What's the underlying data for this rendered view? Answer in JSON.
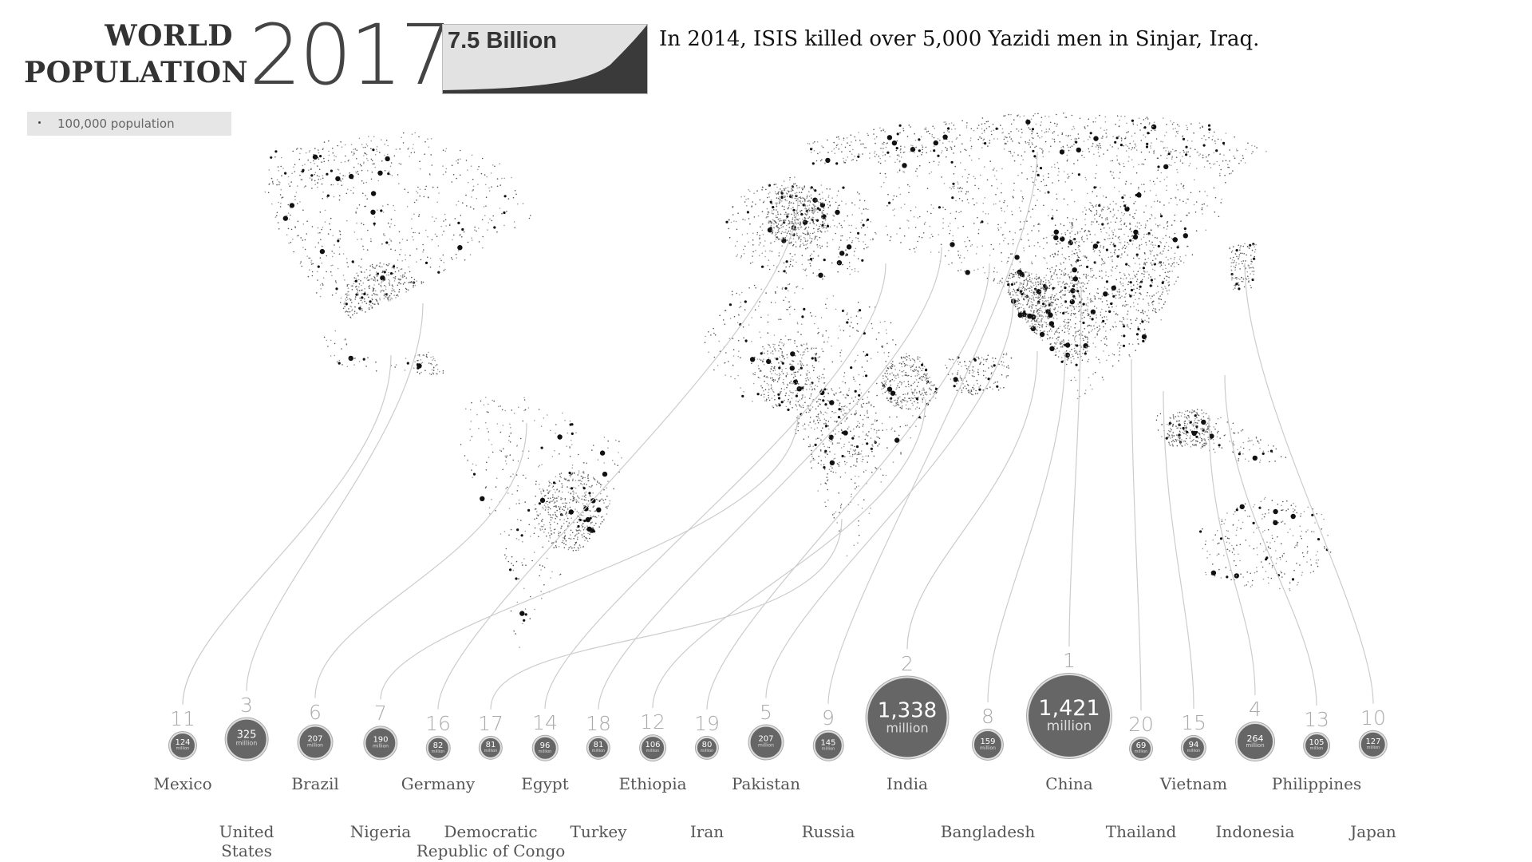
{
  "header": {
    "title_line1": "WORLD",
    "title_line2": "POPULATION",
    "year": "2017",
    "world_population": "7.5 Billion",
    "fact": "In 2014, ISIS killed over 5,000 Yazidi men in Sinjar, Iraq."
  },
  "legend": {
    "label": "100,000 population"
  },
  "colors": {
    "bubble": "#666666",
    "dot": "#222222",
    "rank": "#aaaaaa",
    "leader": "#cccccc",
    "background": "#ffffff"
  },
  "chart_data": {
    "type": "scatter",
    "title": "WORLD POPULATION 2017",
    "unit": "million",
    "dot_value": "100,000 population",
    "countries": [
      {
        "rank": "1",
        "name": "China",
        "value": "1,421",
        "millions": 1421,
        "unit": "million"
      },
      {
        "rank": "2",
        "name": "India",
        "value": "1,338",
        "millions": 1338,
        "unit": "million"
      },
      {
        "rank": "3",
        "name": "United States",
        "value": "325",
        "millions": 325,
        "unit": "million"
      },
      {
        "rank": "4",
        "name": "Indonesia",
        "value": "264",
        "millions": 264,
        "unit": "million"
      },
      {
        "rank": "5",
        "name": "Pakistan",
        "value": "207",
        "millions": 207,
        "unit": "million"
      },
      {
        "rank": "6",
        "name": "Brazil",
        "value": "207",
        "millions": 207,
        "unit": "million"
      },
      {
        "rank": "7",
        "name": "Nigeria",
        "value": "190",
        "millions": 190,
        "unit": "million"
      },
      {
        "rank": "8",
        "name": "Bangladesh",
        "value": "159",
        "millions": 159,
        "unit": "million"
      },
      {
        "rank": "9",
        "name": "Russia",
        "value": "145",
        "millions": 145,
        "unit": "million"
      },
      {
        "rank": "10",
        "name": "Japan",
        "value": "127",
        "millions": 127,
        "unit": "million"
      },
      {
        "rank": "11",
        "name": "Mexico",
        "value": "124",
        "millions": 124,
        "unit": "million"
      },
      {
        "rank": "12",
        "name": "Ethiopia",
        "value": "106",
        "millions": 106,
        "unit": "million"
      },
      {
        "rank": "13",
        "name": "Philippines",
        "value": "105",
        "millions": 105,
        "unit": "million"
      },
      {
        "rank": "14",
        "name": "Egypt",
        "value": "96",
        "millions": 96,
        "unit": "million"
      },
      {
        "rank": "15",
        "name": "Vietnam",
        "value": "94",
        "millions": 94,
        "unit": "million"
      },
      {
        "rank": "16",
        "name": "Germany",
        "value": "82",
        "millions": 82,
        "unit": "million"
      },
      {
        "rank": "17",
        "name": "Democratic Republic of Congo",
        "value": "81",
        "millions": 81,
        "unit": "million"
      },
      {
        "rank": "18",
        "name": "Turkey",
        "value": "81",
        "millions": 81,
        "unit": "million"
      },
      {
        "rank": "19",
        "name": "Iran",
        "value": "80",
        "millions": 80,
        "unit": "million"
      },
      {
        "rank": "20",
        "name": "Thailand",
        "value": "69",
        "millions": 69,
        "unit": "million"
      }
    ]
  }
}
